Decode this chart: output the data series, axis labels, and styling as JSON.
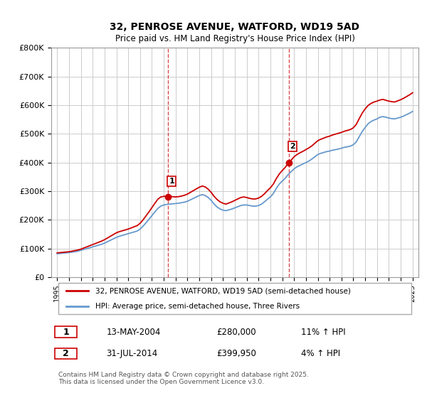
{
  "title": "32, PENROSE AVENUE, WATFORD, WD19 5AD",
  "subtitle": "Price paid vs. HM Land Registry's House Price Index (HPI)",
  "red_label": "32, PENROSE AVENUE, WATFORD, WD19 5AD (semi-detached house)",
  "blue_label": "HPI: Average price, semi-detached house, Three Rivers",
  "footer": "Contains HM Land Registry data © Crown copyright and database right 2025.\nThis data is licensed under the Open Government Licence v3.0.",
  "sale1_label": "1",
  "sale1_date": "13-MAY-2004",
  "sale1_price": "£280,000",
  "sale1_hpi": "11% ↑ HPI",
  "sale2_label": "2",
  "sale2_date": "31-JUL-2014",
  "sale2_price": "£399,950",
  "sale2_hpi": "4% ↑ HPI",
  "sale1_x": 2004.36,
  "sale1_y": 280000,
  "sale2_x": 2014.58,
  "sale2_y": 399950,
  "ylim": [
    0,
    800000
  ],
  "xlim": [
    1994.5,
    2025.5
  ],
  "yticks": [
    0,
    100000,
    200000,
    300000,
    400000,
    500000,
    600000,
    700000,
    800000
  ],
  "ytick_labels": [
    "£0",
    "£100K",
    "£200K",
    "£300K",
    "£400K",
    "£500K",
    "£600K",
    "£700K",
    "£800K"
  ],
  "xticks": [
    1995,
    1996,
    1997,
    1998,
    1999,
    2000,
    2001,
    2002,
    2003,
    2004,
    2005,
    2006,
    2007,
    2008,
    2009,
    2010,
    2011,
    2012,
    2013,
    2014,
    2015,
    2016,
    2017,
    2018,
    2019,
    2020,
    2021,
    2022,
    2023,
    2024,
    2025
  ],
  "red_color": "#cc0000",
  "blue_color": "#6699cc",
  "vline_color": "#cc0000",
  "bg_color": "#ffffff",
  "grid_color": "#cccccc",
  "hpi_data_x": [
    1995,
    1995.25,
    1995.5,
    1995.75,
    1996,
    1996.25,
    1996.5,
    1996.75,
    1997,
    1997.25,
    1997.5,
    1997.75,
    1998,
    1998.25,
    1998.5,
    1998.75,
    1999,
    1999.25,
    1999.5,
    1999.75,
    2000,
    2000.25,
    2000.5,
    2000.75,
    2001,
    2001.25,
    2001.5,
    2001.75,
    2002,
    2002.25,
    2002.5,
    2002.75,
    2003,
    2003.25,
    2003.5,
    2003.75,
    2004,
    2004.25,
    2004.5,
    2004.75,
    2005,
    2005.25,
    2005.5,
    2005.75,
    2006,
    2006.25,
    2006.5,
    2006.75,
    2007,
    2007.25,
    2007.5,
    2007.75,
    2008,
    2008.25,
    2008.5,
    2008.75,
    2009,
    2009.25,
    2009.5,
    2009.75,
    2010,
    2010.25,
    2010.5,
    2010.75,
    2011,
    2011.25,
    2011.5,
    2011.75,
    2012,
    2012.25,
    2012.5,
    2012.75,
    2013,
    2013.25,
    2013.5,
    2013.75,
    2014,
    2014.25,
    2014.5,
    2014.75,
    2015,
    2015.25,
    2015.5,
    2015.75,
    2016,
    2016.25,
    2016.5,
    2016.75,
    2017,
    2017.25,
    2017.5,
    2017.75,
    2018,
    2018.25,
    2018.5,
    2018.75,
    2019,
    2019.25,
    2019.5,
    2019.75,
    2020,
    2020.25,
    2020.5,
    2020.75,
    2021,
    2021.25,
    2021.5,
    2021.75,
    2022,
    2022.25,
    2022.5,
    2022.75,
    2023,
    2023.25,
    2023.5,
    2023.75,
    2024,
    2024.25,
    2024.5,
    2024.75,
    2025
  ],
  "hpi_data_y": [
    82000,
    83000,
    84000,
    85000,
    86000,
    87500,
    89000,
    91000,
    94000,
    97000,
    100000,
    103000,
    106000,
    109000,
    112000,
    115000,
    119000,
    124000,
    129000,
    134000,
    139000,
    143000,
    146000,
    149000,
    152000,
    155000,
    158000,
    161000,
    168000,
    178000,
    190000,
    202000,
    215000,
    228000,
    240000,
    248000,
    252000,
    254000,
    255000,
    256000,
    257000,
    258000,
    260000,
    262000,
    265000,
    270000,
    275000,
    280000,
    285000,
    288000,
    285000,
    278000,
    268000,
    255000,
    245000,
    238000,
    234000,
    232000,
    235000,
    238000,
    242000,
    246000,
    250000,
    252000,
    252000,
    250000,
    248000,
    248000,
    250000,
    255000,
    263000,
    272000,
    280000,
    292000,
    310000,
    325000,
    335000,
    345000,
    358000,
    368000,
    378000,
    385000,
    390000,
    395000,
    400000,
    405000,
    412000,
    420000,
    428000,
    432000,
    435000,
    438000,
    440000,
    443000,
    445000,
    447000,
    450000,
    453000,
    455000,
    457000,
    462000,
    472000,
    490000,
    508000,
    522000,
    535000,
    543000,
    548000,
    552000,
    558000,
    560000,
    558000,
    555000,
    553000,
    552000,
    555000,
    558000,
    562000,
    567000,
    572000,
    578000
  ],
  "price_data_x": [
    1995,
    1995.25,
    1995.5,
    1995.75,
    1996,
    1996.25,
    1996.5,
    1996.75,
    1997,
    1997.25,
    1997.5,
    1997.75,
    1998,
    1998.25,
    1998.5,
    1998.75,
    1999,
    1999.25,
    1999.5,
    1999.75,
    2000,
    2000.25,
    2000.5,
    2000.75,
    2001,
    2001.25,
    2001.5,
    2001.75,
    2002,
    2002.25,
    2002.5,
    2002.75,
    2003,
    2003.25,
    2003.5,
    2003.75,
    2004,
    2004.25,
    2004.5,
    2004.75,
    2005,
    2005.25,
    2005.5,
    2005.75,
    2006,
    2006.25,
    2006.5,
    2006.75,
    2007,
    2007.25,
    2007.5,
    2007.75,
    2008,
    2008.25,
    2008.5,
    2008.75,
    2009,
    2009.25,
    2009.5,
    2009.75,
    2010,
    2010.25,
    2010.5,
    2010.75,
    2011,
    2011.25,
    2011.5,
    2011.75,
    2012,
    2012.25,
    2012.5,
    2012.75,
    2013,
    2013.25,
    2013.5,
    2013.75,
    2014,
    2014.25,
    2014.5,
    2014.75,
    2015,
    2015.25,
    2015.5,
    2015.75,
    2016,
    2016.25,
    2016.5,
    2016.75,
    2017,
    2017.25,
    2017.5,
    2017.75,
    2018,
    2018.25,
    2018.5,
    2018.75,
    2019,
    2019.25,
    2019.5,
    2019.75,
    2020,
    2020.25,
    2020.5,
    2020.75,
    2021,
    2021.25,
    2021.5,
    2021.75,
    2022,
    2022.25,
    2022.5,
    2022.75,
    2023,
    2023.25,
    2023.5,
    2023.75,
    2024,
    2024.25,
    2024.5,
    2024.75,
    2025
  ],
  "price_data_y": [
    85000,
    86000,
    87000,
    88000,
    89000,
    91000,
    93000,
    95000,
    98000,
    102000,
    106000,
    110000,
    114000,
    118000,
    122000,
    126000,
    131000,
    137000,
    143000,
    149000,
    155000,
    159000,
    162000,
    165000,
    168000,
    172000,
    176000,
    180000,
    188000,
    200000,
    214000,
    228000,
    243000,
    258000,
    272000,
    280000,
    282000,
    283000,
    282000,
    281000,
    280000,
    281000,
    283000,
    286000,
    290000,
    296000,
    302000,
    308000,
    314000,
    318000,
    315000,
    307000,
    296000,
    282000,
    271000,
    263000,
    258000,
    255000,
    259000,
    263000,
    268000,
    273000,
    278000,
    280000,
    278000,
    275000,
    273000,
    273000,
    276000,
    282000,
    291000,
    302000,
    312000,
    325000,
    344000,
    360000,
    372000,
    383000,
    397000,
    408000,
    420000,
    428000,
    434000,
    439000,
    445000,
    451000,
    458000,
    467000,
    476000,
    481000,
    485000,
    489000,
    492000,
    496000,
    499000,
    502000,
    505000,
    509000,
    512000,
    515000,
    521000,
    533000,
    553000,
    572000,
    587000,
    599000,
    606000,
    611000,
    614000,
    618000,
    620000,
    617000,
    614000,
    612000,
    611000,
    615000,
    619000,
    624000,
    630000,
    636000,
    643000
  ]
}
